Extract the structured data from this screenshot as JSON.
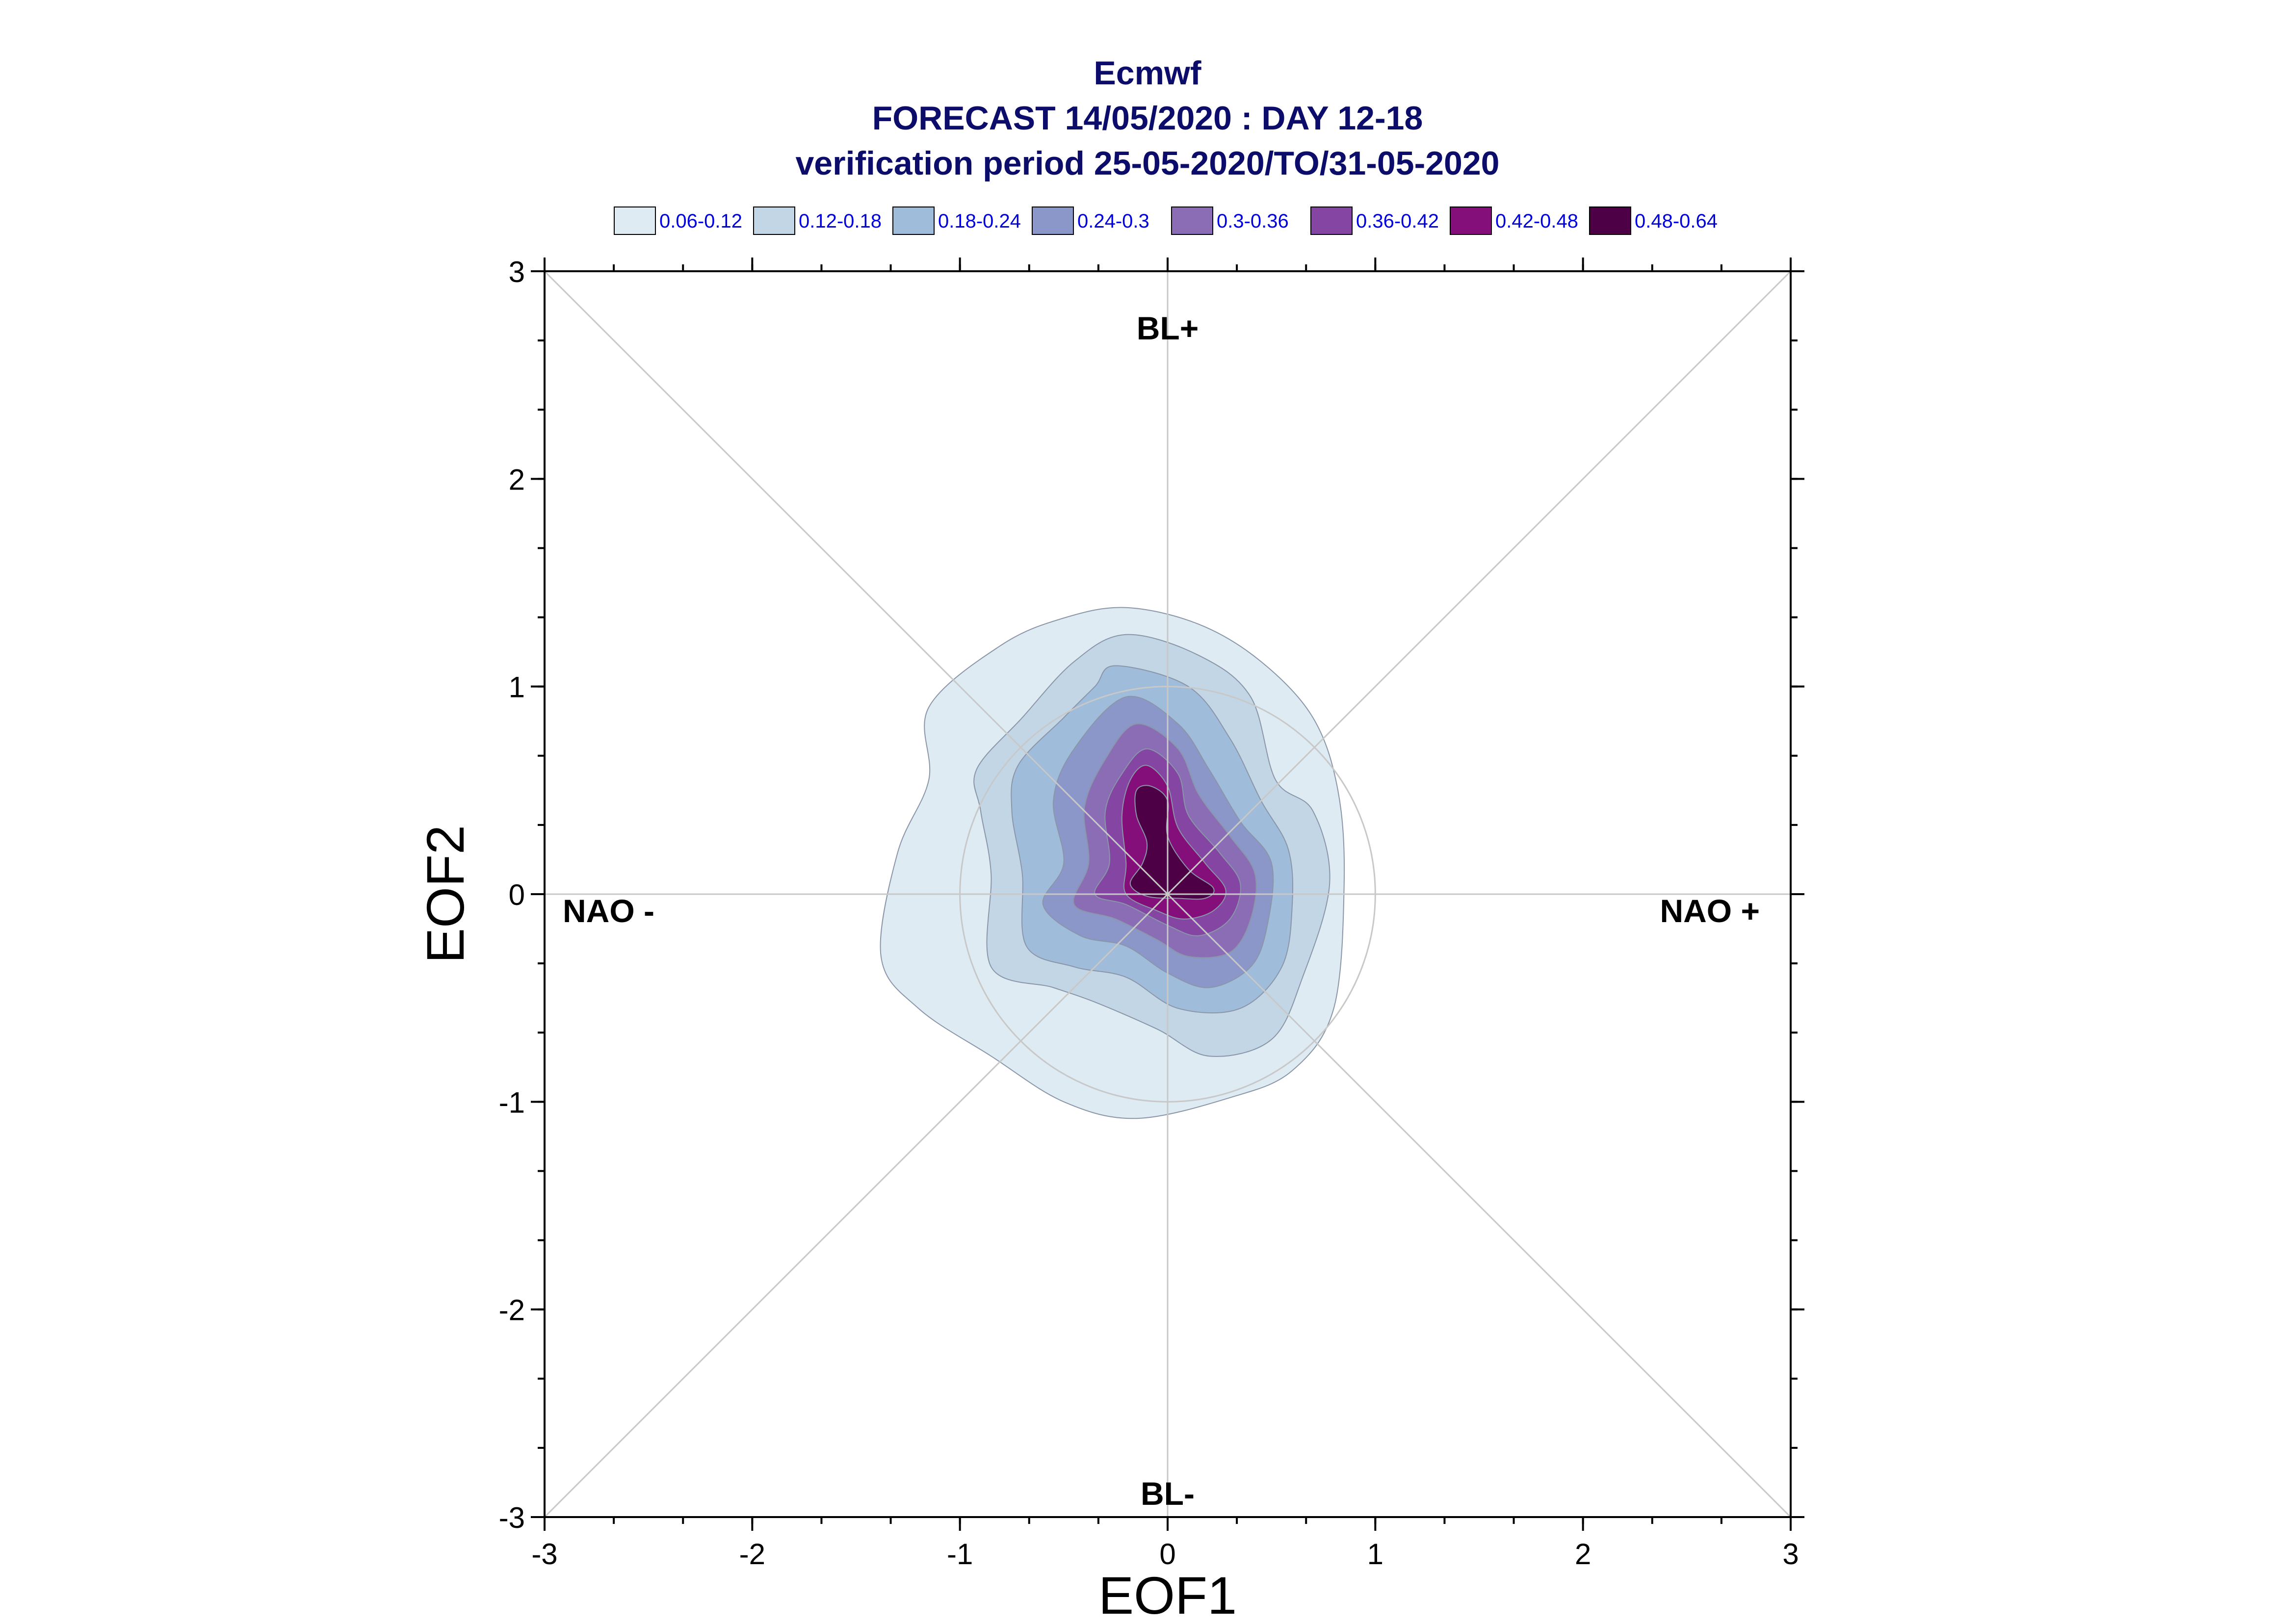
{
  "title": {
    "line1": "Ecmwf",
    "line2": "FORECAST 14/05/2020 : DAY 12-18",
    "line3": "verification period 25-05-2020/TO/31-05-2020"
  },
  "legend": [
    {
      "label": "0.06-0.12",
      "color": "#deebf3"
    },
    {
      "label": "0.12-0.18",
      "color": "#c3d6e6"
    },
    {
      "label": "0.18-0.24",
      "color": "#9fbcdb"
    },
    {
      "label": "0.24-0.3",
      "color": "#8b96c9"
    },
    {
      "label": "0.3-0.36",
      "color": "#8b6db6"
    },
    {
      "label": "0.36-0.42",
      "color": "#8445a3"
    },
    {
      "label": "0.42-0.48",
      "color": "#850f7a"
    },
    {
      "label": "0.48-0.64",
      "color": "#4d0045"
    }
  ],
  "chart_data": {
    "type": "contour",
    "xlabel": "EOF1",
    "ylabel": "EOF2",
    "xlim": [
      -3,
      3
    ],
    "ylim": [
      -3,
      3
    ],
    "xticks": [
      "-3",
      "-2",
      "-1",
      "0",
      "1",
      "2",
      "3"
    ],
    "yticks": [
      "-3",
      "-2",
      "-1",
      "0",
      "1",
      "2",
      "3"
    ],
    "regime_labels": {
      "top": "BL+",
      "bottom": "BL-",
      "left": "NAO -",
      "right": "NAO +"
    },
    "reference_circle_radius": 1.0,
    "levels": [
      {
        "range": "0.06-0.12",
        "points": [
          [
            -0.2,
            1.38
          ],
          [
            0.15,
            1.3
          ],
          [
            0.45,
            1.12
          ],
          [
            0.7,
            0.85
          ],
          [
            0.82,
            0.5
          ],
          [
            0.85,
            0.05
          ],
          [
            0.8,
            -0.55
          ],
          [
            0.6,
            -0.85
          ],
          [
            0.3,
            -0.98
          ],
          [
            -0.15,
            -1.08
          ],
          [
            -0.5,
            -1.0
          ],
          [
            -0.85,
            -0.78
          ],
          [
            -1.2,
            -0.55
          ],
          [
            -1.38,
            -0.3
          ],
          [
            -1.3,
            0.2
          ],
          [
            -1.15,
            0.55
          ],
          [
            -1.15,
            0.9
          ],
          [
            -0.8,
            1.2
          ],
          [
            -0.5,
            1.33
          ]
        ]
      },
      {
        "range": "0.12-0.18",
        "points": [
          [
            -0.2,
            1.25
          ],
          [
            0.15,
            1.15
          ],
          [
            0.4,
            0.95
          ],
          [
            0.52,
            0.55
          ],
          [
            0.7,
            0.4
          ],
          [
            0.78,
            0.05
          ],
          [
            0.65,
            -0.4
          ],
          [
            0.5,
            -0.7
          ],
          [
            0.2,
            -0.78
          ],
          [
            -0.05,
            -0.65
          ],
          [
            -0.35,
            -0.52
          ],
          [
            -0.55,
            -0.45
          ],
          [
            -0.85,
            -0.35
          ],
          [
            -0.85,
            0.1
          ],
          [
            -0.9,
            0.4
          ],
          [
            -0.92,
            0.6
          ],
          [
            -0.7,
            0.85
          ],
          [
            -0.45,
            1.12
          ]
        ]
      },
      {
        "range": "0.18-0.24",
        "points": [
          [
            -0.25,
            1.1
          ],
          [
            0.1,
            1.0
          ],
          [
            0.3,
            0.75
          ],
          [
            0.45,
            0.45
          ],
          [
            0.58,
            0.22
          ],
          [
            0.6,
            -0.05
          ],
          [
            0.55,
            -0.35
          ],
          [
            0.35,
            -0.55
          ],
          [
            0.05,
            -0.55
          ],
          [
            -0.2,
            -0.4
          ],
          [
            -0.45,
            -0.35
          ],
          [
            -0.68,
            -0.25
          ],
          [
            -0.7,
            0.1
          ],
          [
            -0.75,
            0.4
          ],
          [
            -0.72,
            0.62
          ],
          [
            -0.5,
            0.85
          ],
          [
            -0.35,
            1.0
          ]
        ]
      },
      {
        "range": "0.24-0.3",
        "points": [
          [
            -0.2,
            0.95
          ],
          [
            0.05,
            0.82
          ],
          [
            0.2,
            0.6
          ],
          [
            0.35,
            0.35
          ],
          [
            0.5,
            0.15
          ],
          [
            0.48,
            -0.15
          ],
          [
            0.4,
            -0.35
          ],
          [
            0.2,
            -0.45
          ],
          [
            0.0,
            -0.38
          ],
          [
            -0.2,
            -0.25
          ],
          [
            -0.42,
            -0.2
          ],
          [
            -0.6,
            -0.05
          ],
          [
            -0.5,
            0.15
          ],
          [
            -0.55,
            0.45
          ],
          [
            -0.45,
            0.7
          ]
        ]
      },
      {
        "range": "0.3-0.36",
        "points": [
          [
            -0.15,
            0.82
          ],
          [
            0.05,
            0.7
          ],
          [
            0.15,
            0.48
          ],
          [
            0.3,
            0.28
          ],
          [
            0.42,
            0.1
          ],
          [
            0.4,
            -0.12
          ],
          [
            0.3,
            -0.28
          ],
          [
            0.1,
            -0.3
          ],
          [
            -0.05,
            -0.22
          ],
          [
            -0.25,
            -0.12
          ],
          [
            -0.45,
            -0.05
          ],
          [
            -0.38,
            0.15
          ],
          [
            -0.4,
            0.42
          ],
          [
            -0.3,
            0.65
          ]
        ]
      },
      {
        "range": "0.36-0.42",
        "points": [
          [
            -0.1,
            0.7
          ],
          [
            0.05,
            0.58
          ],
          [
            0.1,
            0.38
          ],
          [
            0.25,
            0.2
          ],
          [
            0.35,
            0.05
          ],
          [
            0.3,
            -0.12
          ],
          [
            0.15,
            -0.2
          ],
          [
            0.0,
            -0.15
          ],
          [
            -0.2,
            -0.05
          ],
          [
            -0.35,
            0.0
          ],
          [
            -0.28,
            0.15
          ],
          [
            -0.3,
            0.4
          ],
          [
            -0.22,
            0.58
          ]
        ]
      },
      {
        "range": "0.42-0.48",
        "points": [
          [
            -0.1,
            0.62
          ],
          [
            0.0,
            0.52
          ],
          [
            0.05,
            0.32
          ],
          [
            0.18,
            0.15
          ],
          [
            0.28,
            0.02
          ],
          [
            0.22,
            -0.08
          ],
          [
            0.08,
            -0.12
          ],
          [
            -0.05,
            -0.08
          ],
          [
            -0.2,
            0.0
          ],
          [
            -0.2,
            0.15
          ],
          [
            -0.22,
            0.38
          ],
          [
            -0.18,
            0.55
          ]
        ]
      },
      {
        "range": "0.48-0.64",
        "points": [
          [
            -0.08,
            0.52
          ],
          [
            0.0,
            0.45
          ],
          [
            0.0,
            0.28
          ],
          [
            0.1,
            0.12
          ],
          [
            0.22,
            0.03
          ],
          [
            0.18,
            -0.02
          ],
          [
            0.05,
            -0.02
          ],
          [
            -0.1,
            -0.01
          ],
          [
            -0.18,
            0.05
          ],
          [
            -0.12,
            0.15
          ],
          [
            -0.1,
            0.25
          ],
          [
            -0.15,
            0.38
          ],
          [
            -0.15,
            0.5
          ]
        ]
      }
    ]
  }
}
